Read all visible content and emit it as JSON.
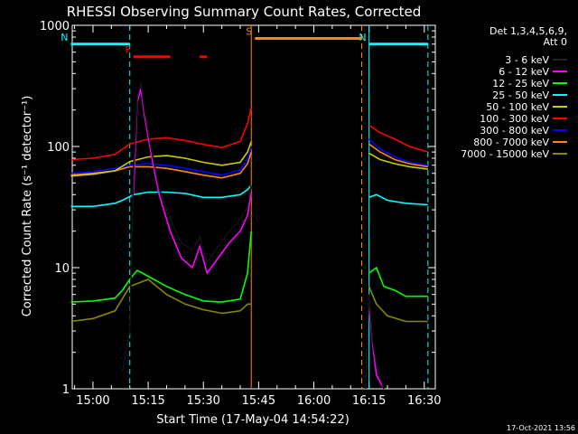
{
  "chart_data": {
    "type": "line",
    "title": "RHESSI Observing Summary Count Rates, Corrected",
    "ylabel": "Corrected Count Rate (s⁻¹ detector⁻¹)",
    "xlabel": "Start Time (17-May-04 14:54:22)",
    "footer": "17-Oct-2021 13:56",
    "y_scale": "log",
    "ylim": [
      1,
      1000
    ],
    "xlim": [
      "14:54:22",
      "16:33:00"
    ],
    "y_ticks": [
      {
        "value": 1,
        "label": "1"
      },
      {
        "value": 10,
        "label": "10"
      },
      {
        "value": 100,
        "label": "100"
      },
      {
        "value": 1000,
        "label": "1000"
      }
    ],
    "x_ticks": [
      {
        "value": "15:00",
        "label": "15:00"
      },
      {
        "value": "15:15",
        "label": "15:15"
      },
      {
        "value": "15:30",
        "label": "15:30"
      },
      {
        "value": "15:45",
        "label": "15:45"
      },
      {
        "value": "16:00",
        "label": "16:00"
      },
      {
        "value": "16:15",
        "label": "16:15"
      },
      {
        "value": "16:30",
        "label": "16:30"
      }
    ],
    "legend_header": [
      "Det 1,3,4,5,6,9,",
      "Att 0"
    ],
    "legend_position": "right",
    "series": [
      {
        "name": "3 - 6 keV",
        "color": "#000000",
        "points": [
          [
            "14:54",
            1.0
          ],
          [
            "15:08",
            1.4
          ],
          [
            "15:10",
            3
          ],
          [
            "15:11",
            60
          ],
          [
            "15:12",
            250
          ],
          [
            "15:13",
            340
          ],
          [
            "15:14",
            200
          ],
          [
            "15:16",
            90
          ],
          [
            "15:18",
            45
          ],
          [
            "15:21",
            25
          ],
          [
            "15:24",
            16
          ],
          [
            "15:27",
            14
          ],
          [
            "15:29",
            18
          ],
          [
            "15:31",
            11
          ],
          [
            "15:34",
            15
          ],
          [
            "15:37",
            20
          ],
          [
            "15:40",
            25
          ],
          [
            "15:42",
            32
          ],
          [
            "15:43",
            48
          ],
          [
            "16:14",
            1.0
          ],
          [
            "16:15",
            6
          ],
          [
            "16:16",
            2.5
          ],
          [
            "16:17",
            1.6
          ],
          [
            "16:19",
            1.0
          ],
          [
            "16:31",
            1.0
          ]
        ]
      },
      {
        "name": "6 - 12 keV",
        "color": "#ff00ff",
        "points": [
          [
            "15:11",
            40
          ],
          [
            "15:12",
            230
          ],
          [
            "15:13",
            300
          ],
          [
            "15:14",
            180
          ],
          [
            "15:16",
            80
          ],
          [
            "15:18",
            40
          ],
          [
            "15:21",
            20
          ],
          [
            "15:24",
            12
          ],
          [
            "15:27",
            10
          ],
          [
            "15:29",
            15
          ],
          [
            "15:31",
            9
          ],
          [
            "15:34",
            12
          ],
          [
            "15:37",
            16
          ],
          [
            "15:40",
            20
          ],
          [
            "15:42",
            27
          ],
          [
            "15:43",
            42
          ],
          [
            "16:15",
            5
          ],
          [
            "16:16",
            2.3
          ],
          [
            "16:17",
            1.3
          ],
          [
            "16:19",
            1.0
          ],
          [
            "16:31",
            1.0
          ]
        ]
      },
      {
        "name": "12 - 25 keV",
        "color": "#00ff00",
        "points": [
          [
            "14:54",
            5.2
          ],
          [
            "15:00",
            5.3
          ],
          [
            "15:06",
            5.6
          ],
          [
            "15:08",
            6.5
          ],
          [
            "15:10",
            8
          ],
          [
            "15:12",
            9.5
          ],
          [
            "15:15",
            8.5
          ],
          [
            "15:20",
            7
          ],
          [
            "15:25",
            6
          ],
          [
            "15:30",
            5.3
          ],
          [
            "15:35",
            5.2
          ],
          [
            "15:40",
            5.5
          ],
          [
            "15:42",
            9
          ],
          [
            "15:43",
            20
          ],
          [
            "16:15",
            9
          ],
          [
            "16:17",
            10
          ],
          [
            "16:19",
            7
          ],
          [
            "16:22",
            6.5
          ],
          [
            "16:25",
            5.8
          ],
          [
            "16:31",
            5.8
          ]
        ]
      },
      {
        "name": "25 - 50 keV",
        "color": "#00ffff",
        "points": [
          [
            "14:54",
            32
          ],
          [
            "15:00",
            32
          ],
          [
            "15:06",
            34
          ],
          [
            "15:08",
            36
          ],
          [
            "15:11",
            40
          ],
          [
            "15:15",
            42
          ],
          [
            "15:20",
            42
          ],
          [
            "15:25",
            41
          ],
          [
            "15:30",
            38
          ],
          [
            "15:35",
            38
          ],
          [
            "15:40",
            40
          ],
          [
            "15:42",
            44
          ],
          [
            "15:43",
            48
          ],
          [
            "16:15",
            38
          ],
          [
            "16:17",
            40
          ],
          [
            "16:20",
            36
          ],
          [
            "16:25",
            34
          ],
          [
            "16:31",
            33
          ]
        ]
      },
      {
        "name": "50 - 100 keV",
        "color": "#cccc00",
        "points": [
          [
            "14:54",
            57
          ],
          [
            "15:00",
            59
          ],
          [
            "15:06",
            63
          ],
          [
            "15:10",
            75
          ],
          [
            "15:15",
            82
          ],
          [
            "15:20",
            84
          ],
          [
            "15:25",
            80
          ],
          [
            "15:30",
            74
          ],
          [
            "15:35",
            70
          ],
          [
            "15:40",
            74
          ],
          [
            "15:42",
            90
          ],
          [
            "15:43",
            110
          ],
          [
            "16:15",
            88
          ],
          [
            "16:18",
            78
          ],
          [
            "16:22",
            72
          ],
          [
            "16:26",
            68
          ],
          [
            "16:31",
            65
          ]
        ]
      },
      {
        "name": "100 - 300 keV",
        "color": "#ff0000",
        "points": [
          [
            "14:54",
            78
          ],
          [
            "15:00",
            80
          ],
          [
            "15:06",
            86
          ],
          [
            "15:10",
            105
          ],
          [
            "15:15",
            115
          ],
          [
            "15:20",
            118
          ],
          [
            "15:25",
            112
          ],
          [
            "15:30",
            104
          ],
          [
            "15:35",
            98
          ],
          [
            "15:40",
            110
          ],
          [
            "15:42",
            155
          ],
          [
            "15:43",
            210
          ],
          [
            "16:15",
            150
          ],
          [
            "16:18",
            130
          ],
          [
            "16:22",
            115
          ],
          [
            "16:26",
            100
          ],
          [
            "16:31",
            90
          ]
        ]
      },
      {
        "name": "300 - 800 keV",
        "color": "#0000ff",
        "points": [
          [
            "14:54",
            60
          ],
          [
            "15:00",
            62
          ],
          [
            "15:06",
            66
          ],
          [
            "15:10",
            70
          ],
          [
            "15:15",
            72
          ],
          [
            "15:20",
            70
          ],
          [
            "15:25",
            66
          ],
          [
            "15:30",
            62
          ],
          [
            "15:35",
            58
          ],
          [
            "15:40",
            64
          ],
          [
            "15:42",
            78
          ],
          [
            "15:43",
            100
          ],
          [
            "16:15",
            115
          ],
          [
            "16:18",
            95
          ],
          [
            "16:22",
            82
          ],
          [
            "16:26",
            74
          ],
          [
            "16:31",
            70
          ]
        ]
      },
      {
        "name": "800 - 7000 keV",
        "color": "#ff8800",
        "points": [
          [
            "14:54",
            58
          ],
          [
            "15:00",
            60
          ],
          [
            "15:06",
            63
          ],
          [
            "15:10",
            68
          ],
          [
            "15:15",
            68
          ],
          [
            "15:20",
            66
          ],
          [
            "15:25",
            62
          ],
          [
            "15:30",
            58
          ],
          [
            "15:35",
            55
          ],
          [
            "15:40",
            60
          ],
          [
            "15:42",
            72
          ],
          [
            "15:43",
            90
          ],
          [
            "16:15",
            105
          ],
          [
            "16:18",
            90
          ],
          [
            "16:22",
            78
          ],
          [
            "16:26",
            72
          ],
          [
            "16:31",
            68
          ]
        ]
      },
      {
        "name": "7000 - 15000 keV",
        "color": "#888800",
        "points": [
          [
            "14:54",
            3.6
          ],
          [
            "15:00",
            3.8
          ],
          [
            "15:06",
            4.4
          ],
          [
            "15:10",
            7
          ],
          [
            "15:15",
            8
          ],
          [
            "15:20",
            6
          ],
          [
            "15:25",
            5
          ],
          [
            "15:30",
            4.5
          ],
          [
            "15:35",
            4.2
          ],
          [
            "15:40",
            4.4
          ],
          [
            "15:42",
            5
          ],
          [
            "15:43",
            5
          ],
          [
            "16:15",
            7
          ],
          [
            "16:17",
            5
          ],
          [
            "16:20",
            4
          ],
          [
            "16:25",
            3.6
          ],
          [
            "16:31",
            3.6
          ]
        ]
      }
    ],
    "annotations": [
      {
        "label": "N",
        "color": "#00ffff",
        "start": "14:54",
        "end": "15:10",
        "y_value": 700
      },
      {
        "label": "N",
        "color": "#00ffff",
        "start": "16:15",
        "end": "16:31",
        "y_value": 700
      },
      {
        "label": "F",
        "color": "#ff0000",
        "start": "15:11",
        "end": "15:21",
        "y_value": 550
      },
      {
        "label": "",
        "color": "#ff0000",
        "start": "15:29",
        "end": "15:31",
        "y_value": 550
      },
      {
        "label": "S",
        "color": "#ff8800",
        "start": "15:44",
        "end": "16:13",
        "y_value": 780
      }
    ],
    "vertical_lines": [
      {
        "time": "15:10",
        "color": "#00ffff",
        "style": "dashed"
      },
      {
        "time": "15:43",
        "color": "#ff8800",
        "style": "solid"
      },
      {
        "time": "16:13",
        "color": "#ff8800",
        "style": "dashed"
      },
      {
        "time": "16:15",
        "color": "#00ffff",
        "style": "solid"
      },
      {
        "time": "16:31",
        "color": "#00ffff",
        "style": "dashed"
      }
    ]
  }
}
